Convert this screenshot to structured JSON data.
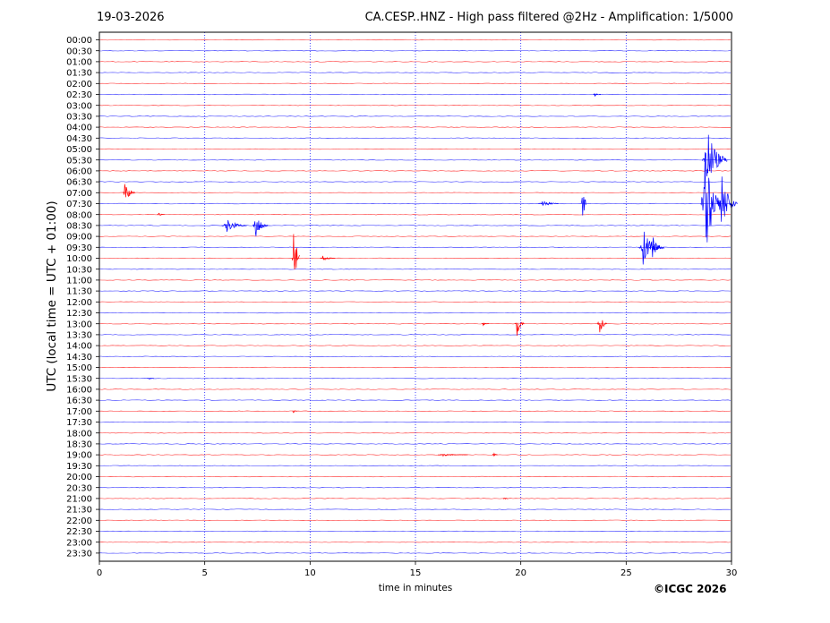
{
  "header": {
    "date": "19-03-2026",
    "title": "CA.CESP..HNZ - High pass filtered @2Hz - Amplification: 1/5000"
  },
  "footer": {
    "copyright": "©ICGC 2026"
  },
  "chart_data": {
    "type": "line",
    "title": "CA.CESP..HNZ - High pass filtered @2Hz - Amplification: 1/5000",
    "xlabel": "time in minutes",
    "ylabel": "UTC (local time = UTC + 01:00)",
    "xlim": [
      0,
      30
    ],
    "x_ticks": [
      0,
      5,
      10,
      15,
      20,
      25,
      30
    ],
    "grid_x": true,
    "grid_style": "dotted-blue-vertical",
    "trace_colors": [
      "#ff0000",
      "#0000ff"
    ],
    "rows": [
      "00:00",
      "00:30",
      "01:00",
      "01:30",
      "02:00",
      "02:30",
      "03:00",
      "03:30",
      "04:00",
      "04:30",
      "05:00",
      "05:30",
      "06:00",
      "06:30",
      "07:00",
      "07:30",
      "08:00",
      "08:30",
      "09:00",
      "09:30",
      "10:00",
      "10:30",
      "11:00",
      "11:30",
      "12:00",
      "12:30",
      "13:00",
      "13:30",
      "14:00",
      "14:30",
      "15:00",
      "15:30",
      "16:00",
      "16:30",
      "17:00",
      "17:30",
      "18:00",
      "18:30",
      "19:00",
      "19:30",
      "20:00",
      "20:30",
      "21:00",
      "21:30",
      "22:00",
      "22:30",
      "23:00",
      "23:30"
    ],
    "events": [
      {
        "row": "07:00",
        "minute": 1.2,
        "amplitude": 0.6,
        "duration": 0.5
      },
      {
        "row": "08:00",
        "minute": 2.8,
        "amplitude": 0.1,
        "duration": 0.3
      },
      {
        "row": "08:30",
        "minute": 6.0,
        "amplitude": 0.35,
        "duration": 1.0
      },
      {
        "row": "08:30",
        "minute": 7.4,
        "amplitude": 0.7,
        "duration": 0.6
      },
      {
        "row": "10:00",
        "minute": 9.2,
        "amplitude": 2.5,
        "duration": 0.3
      },
      {
        "row": "10:00",
        "minute": 10.6,
        "amplitude": 0.12,
        "duration": 0.6
      },
      {
        "row": "07:30",
        "minute": 21.0,
        "amplitude": 0.2,
        "duration": 0.8
      },
      {
        "row": "07:30",
        "minute": 22.9,
        "amplitude": 1.1,
        "duration": 0.2
      },
      {
        "row": "02:30",
        "minute": 23.5,
        "amplitude": 0.1,
        "duration": 0.3
      },
      {
        "row": "09:30",
        "minute": 25.8,
        "amplitude": 0.8,
        "duration": 1.0
      },
      {
        "row": "09:30",
        "minute": 26.2,
        "amplitude": 0.7,
        "duration": 0.5
      },
      {
        "row": "07:30",
        "minute": 28.7,
        "amplitude": 3.2,
        "duration": 0.8
      },
      {
        "row": "05:30",
        "minute": 28.8,
        "amplitude": 1.6,
        "duration": 1.0
      },
      {
        "row": "07:30",
        "minute": 29.5,
        "amplitude": 1.5,
        "duration": 0.8
      },
      {
        "row": "13:00",
        "minute": 19.8,
        "amplitude": 0.6,
        "duration": 0.4
      },
      {
        "row": "13:00",
        "minute": 23.7,
        "amplitude": 0.6,
        "duration": 0.4
      },
      {
        "row": "13:00",
        "minute": 18.2,
        "amplitude": 0.08,
        "duration": 0.3
      },
      {
        "row": "15:30",
        "minute": 2.3,
        "amplitude": 0.06,
        "duration": 0.3
      },
      {
        "row": "17:00",
        "minute": 9.2,
        "amplitude": 0.08,
        "duration": 0.2
      },
      {
        "row": "19:00",
        "minute": 16.3,
        "amplitude": 0.06,
        "duration": 1.2
      },
      {
        "row": "19:00",
        "minute": 18.7,
        "amplitude": 0.15,
        "duration": 0.2
      },
      {
        "row": "21:00",
        "minute": 19.2,
        "amplitude": 0.05,
        "duration": 0.2
      }
    ]
  }
}
